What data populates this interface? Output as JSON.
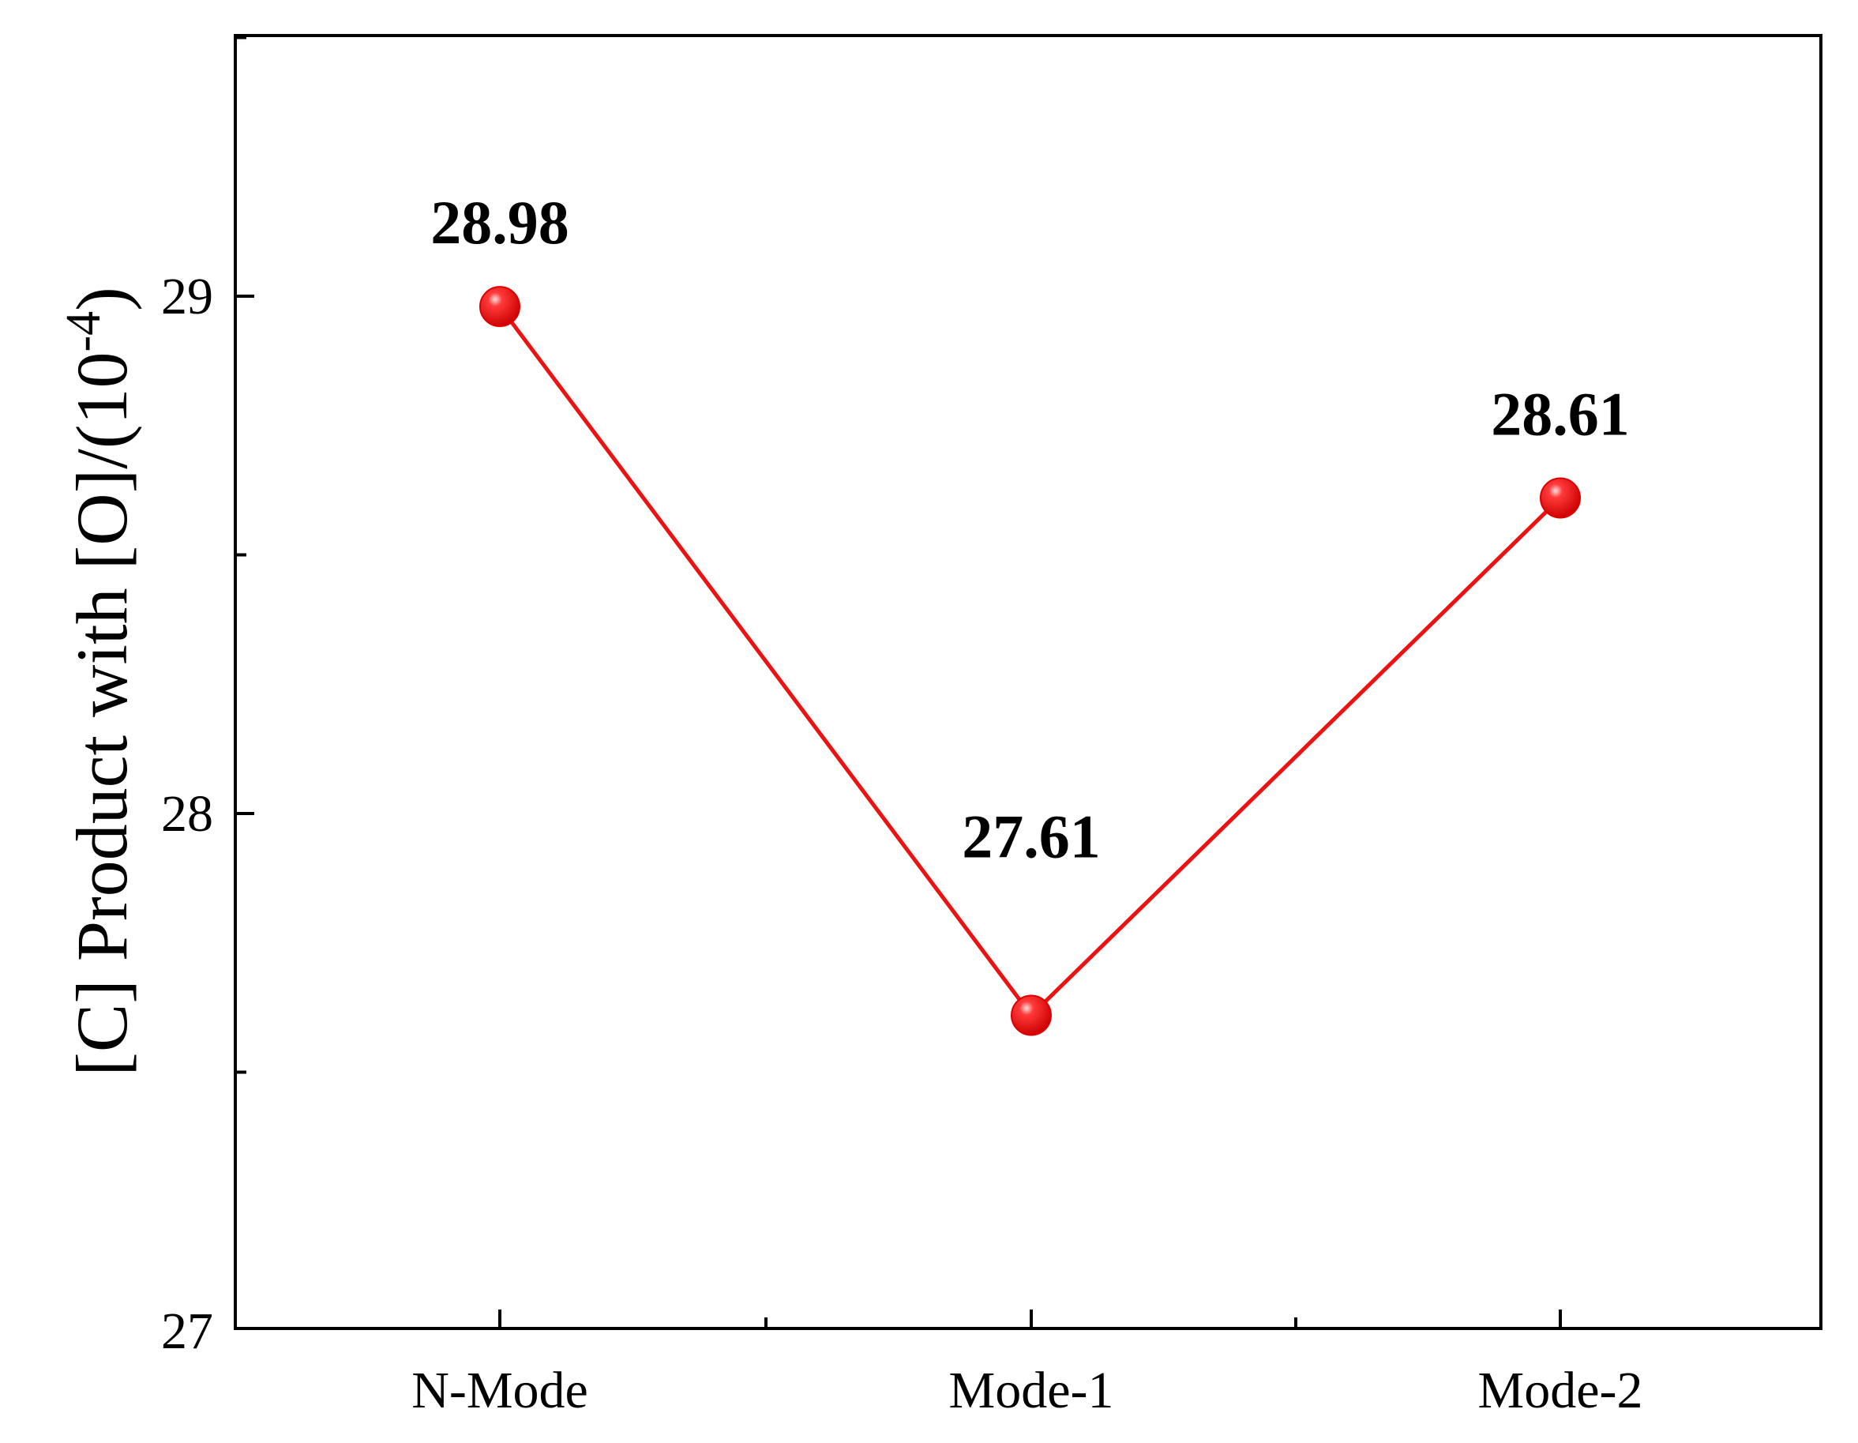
{
  "chart_data": {
    "type": "line",
    "title": "",
    "xlabel": "",
    "ylabel": "[C] Product with [O]/(10",
    "ylabel_superscript": "-4",
    "ylabel_close": ")",
    "categories": [
      "N-Mode",
      "Mode-1",
      "Mode-2"
    ],
    "series": [
      {
        "values": [
          28.98,
          27.61,
          28.61
        ],
        "color": "#ee1111",
        "marker": "sphere"
      }
    ],
    "data_labels": [
      "28.98",
      "27.61",
      "28.61"
    ],
    "ylim": [
      27,
      29.6
    ],
    "yticks_major": [
      27,
      28,
      29
    ],
    "yticks_major_labels": [
      "27",
      "28",
      "29"
    ],
    "yticks_minor": [
      27.5,
      28.5,
      29.5
    ],
    "grid": false,
    "legend": "none"
  }
}
